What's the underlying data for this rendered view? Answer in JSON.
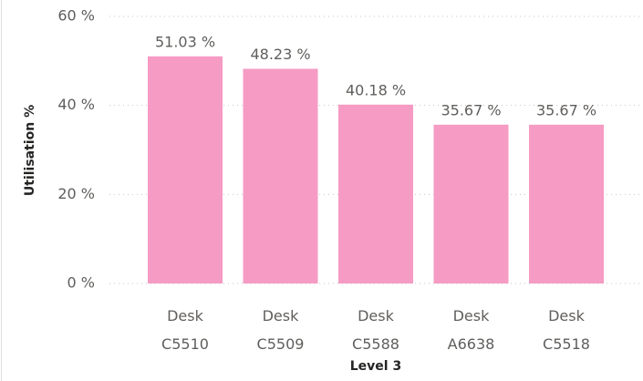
{
  "chart_data": {
    "type": "bar",
    "y_axis_label": "Utilisation %",
    "x_axis_label": "Level 3",
    "categories": [
      "Desk C5510",
      "Desk C5509",
      "Desk C5588",
      "Desk A6638",
      "Desk C5518"
    ],
    "values": [
      51.03,
      48.23,
      40.18,
      35.67,
      35.67
    ],
    "value_labels": [
      "51.03 %",
      "48.23 %",
      "40.18 %",
      "35.67 %",
      "35.67 %"
    ],
    "color": "#f59bc4",
    "ylim": [
      0,
      60
    ],
    "yticks": [
      {
        "value": 0,
        "label": "0 %"
      },
      {
        "value": 20,
        "label": "20 %"
      },
      {
        "value": 40,
        "label": "40 %"
      },
      {
        "value": 60,
        "label": "60 %"
      }
    ],
    "grid": true
  }
}
